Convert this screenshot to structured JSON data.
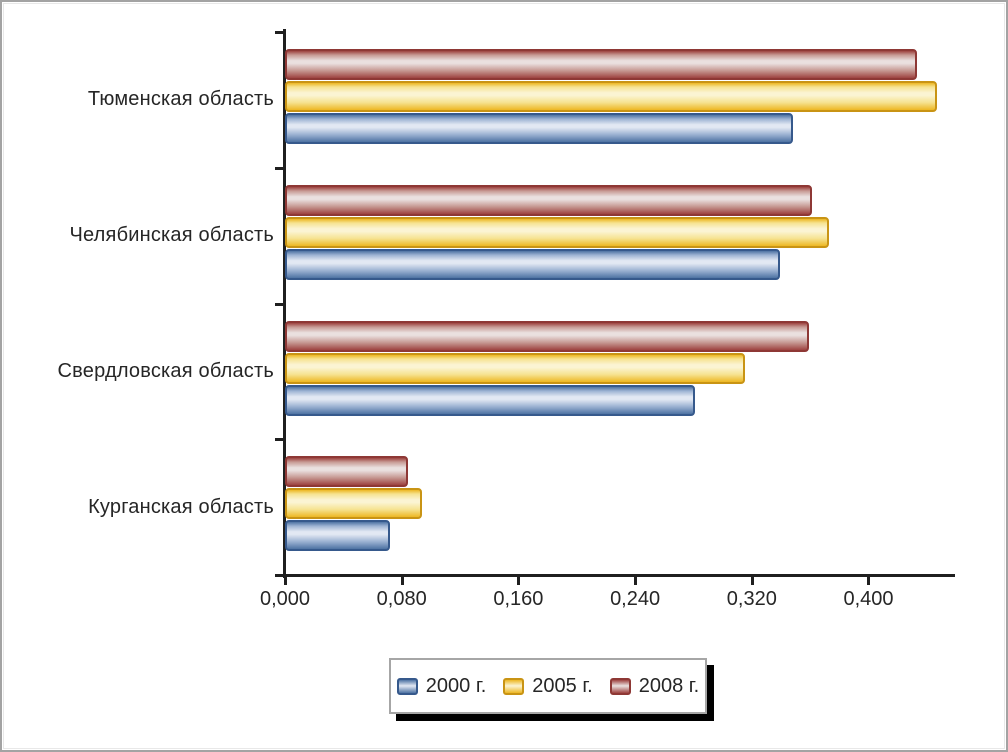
{
  "chart_data": {
    "type": "bar",
    "orientation": "horizontal",
    "title": "",
    "xlabel": "",
    "ylabel": "",
    "grid": false,
    "legend_position": "bottom",
    "xlim": [
      0,
      0.4593
    ],
    "x_tick_step": 0.08,
    "x_ticks": [
      {
        "value": 0.0,
        "label": "0,000"
      },
      {
        "value": 0.08,
        "label": "0,080"
      },
      {
        "value": 0.16,
        "label": "0,160"
      },
      {
        "value": 0.24,
        "label": "0,240"
      },
      {
        "value": 0.32,
        "label": "0,320"
      },
      {
        "value": 0.4,
        "label": "0,400"
      }
    ],
    "categories": [
      "Тюменская область",
      "Челябинская область",
      "Свердловская область",
      "Курганская область"
    ],
    "series": [
      {
        "name": "2000 г.",
        "values": [
          0.348,
          0.339,
          0.281,
          0.072
        ],
        "color_border": "#36598c",
        "color_dark": "#4e73a3",
        "color_mid": "#9db3d3",
        "color_light": "#e2e8f3"
      },
      {
        "name": "2005 г.",
        "values": [
          0.447,
          0.373,
          0.315,
          0.094
        ],
        "color_border": "#c99414",
        "color_dark": "#edb723",
        "color_mid": "#f6e391",
        "color_light": "#fbf4d3"
      },
      {
        "name": "2008 г.",
        "values": [
          0.433,
          0.361,
          0.359,
          0.084
        ],
        "color_border": "#8e3835",
        "color_dark": "#9e4340",
        "color_mid": "#c79a94",
        "color_light": "#eae0df"
      }
    ],
    "bar_display_order_top_to_bottom": [
      "2008 г.",
      "2005 г.",
      "2000 г."
    ]
  }
}
